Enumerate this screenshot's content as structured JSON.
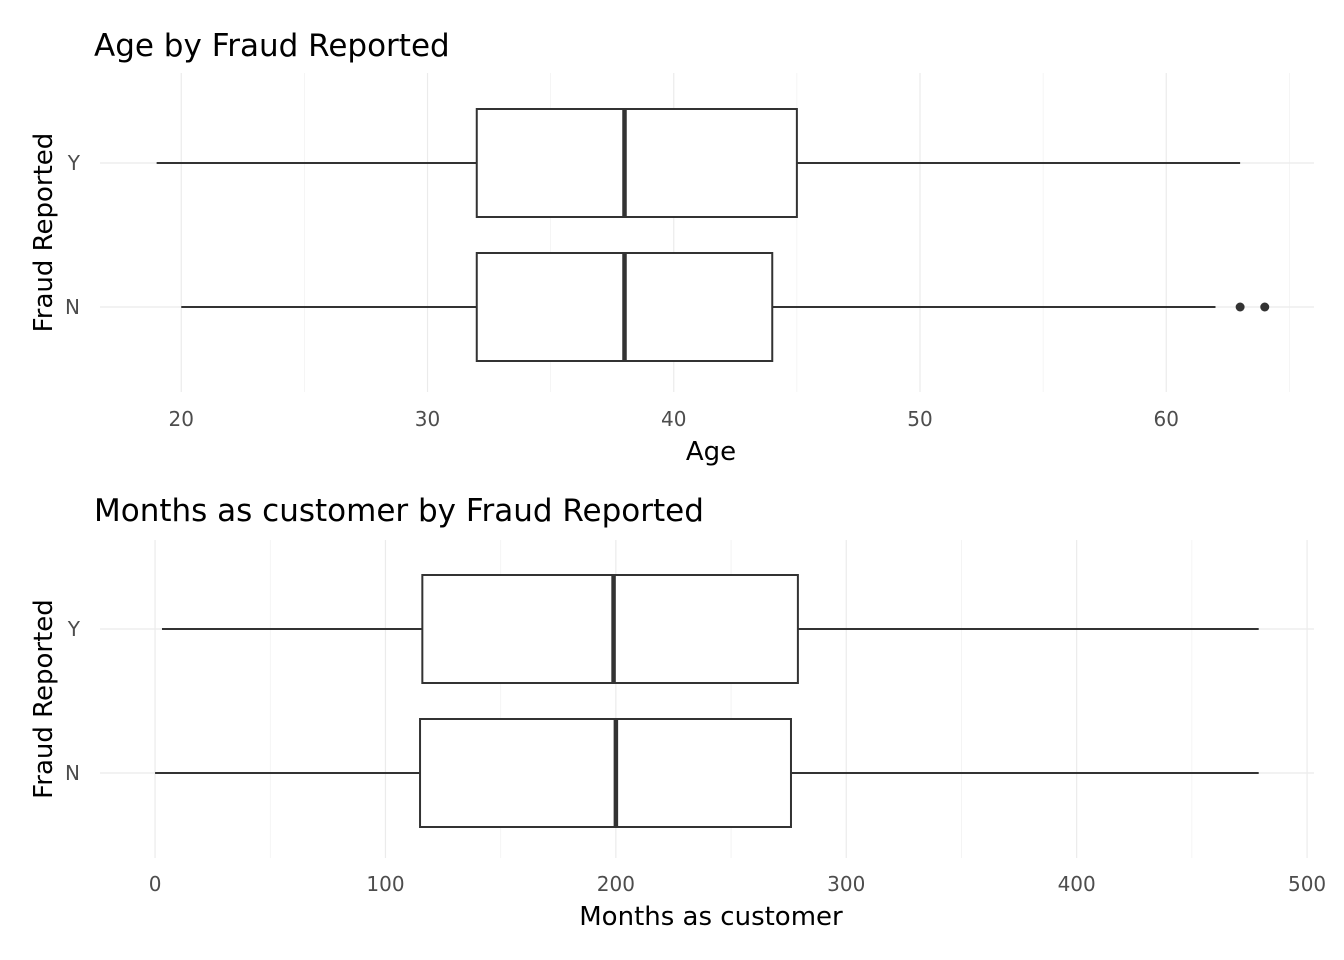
{
  "chart_data": [
    {
      "type": "boxplot",
      "orientation": "horizontal",
      "title": "Age by Fraud Reported",
      "xlabel": "Age",
      "ylabel": "Fraud Reported",
      "xlim": [
        16.7,
        66.0
      ],
      "x_ticks": [
        20,
        30,
        40,
        50,
        60
      ],
      "x_minor": [
        25,
        35,
        45,
        55,
        65
      ],
      "categories": [
        "N",
        "Y"
      ],
      "boxes": [
        {
          "category": "Y",
          "min": 19,
          "q1": 32,
          "median": 38,
          "q3": 45,
          "max": 63,
          "outliers": []
        },
        {
          "category": "N",
          "min": 20,
          "q1": 32,
          "median": 38,
          "q3": 44,
          "max": 62,
          "outliers": [
            63,
            64
          ]
        }
      ],
      "grid": true,
      "colors": {
        "box_line": "#333333",
        "box_fill": "#ffffff",
        "grid": "#ebebeb"
      }
    },
    {
      "type": "boxplot",
      "orientation": "horizontal",
      "title": "Months as customer by Fraud Reported",
      "xlabel": "Months as customer",
      "ylabel": "Fraud Reported",
      "xlim": [
        -23.9,
        503.0
      ],
      "x_ticks": [
        0,
        100,
        200,
        300,
        400,
        500
      ],
      "x_minor": [
        50,
        150,
        250,
        350,
        450
      ],
      "categories": [
        "N",
        "Y"
      ],
      "boxes": [
        {
          "category": "Y",
          "min": 3,
          "q1": 116,
          "median": 199,
          "q3": 279,
          "max": 479,
          "outliers": []
        },
        {
          "category": "N",
          "min": 0,
          "q1": 115,
          "median": 200,
          "q3": 276,
          "max": 479,
          "outliers": []
        }
      ],
      "grid": true,
      "colors": {
        "box_line": "#333333",
        "box_fill": "#ffffff",
        "grid": "#ebebeb"
      }
    }
  ]
}
